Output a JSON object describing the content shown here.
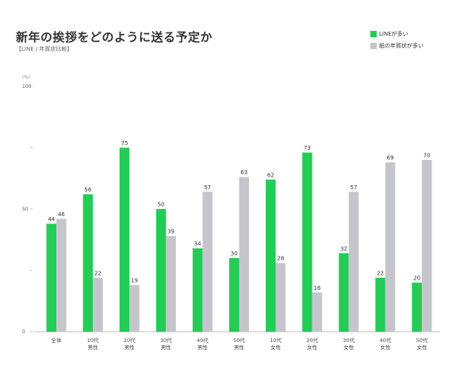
{
  "chart_data": {
    "type": "bar",
    "title": "新年の挨拶をどのように送る予定か",
    "subtitle": "【LINE / 年賀状比較】",
    "unit": "(%)",
    "ylim": [
      0,
      100
    ],
    "yticks": [
      0,
      50,
      100
    ],
    "grid": false,
    "legend_position": "top-right",
    "colors": {
      "line": "#22cc55",
      "paper": "#c4c6cb"
    },
    "categories": [
      [
        "全体"
      ],
      [
        "10代",
        "男性"
      ],
      [
        "20代",
        "男性"
      ],
      [
        "30代",
        "男性"
      ],
      [
        "40代",
        "男性"
      ],
      [
        "50代",
        "男性"
      ],
      [
        "10代",
        "女性"
      ],
      [
        "20代",
        "女性"
      ],
      [
        "30代",
        "女性"
      ],
      [
        "40代",
        "女性"
      ],
      [
        "50代",
        "女性"
      ]
    ],
    "series": [
      {
        "name": "LINEが多い",
        "values": [
          44,
          56,
          75,
          50,
          34,
          30,
          62,
          73,
          32,
          22,
          20
        ]
      },
      {
        "name": "紙の年賀状が多い",
        "values": [
          46,
          22,
          19,
          39,
          57,
          63,
          28,
          16,
          57,
          69,
          70
        ]
      }
    ]
  }
}
